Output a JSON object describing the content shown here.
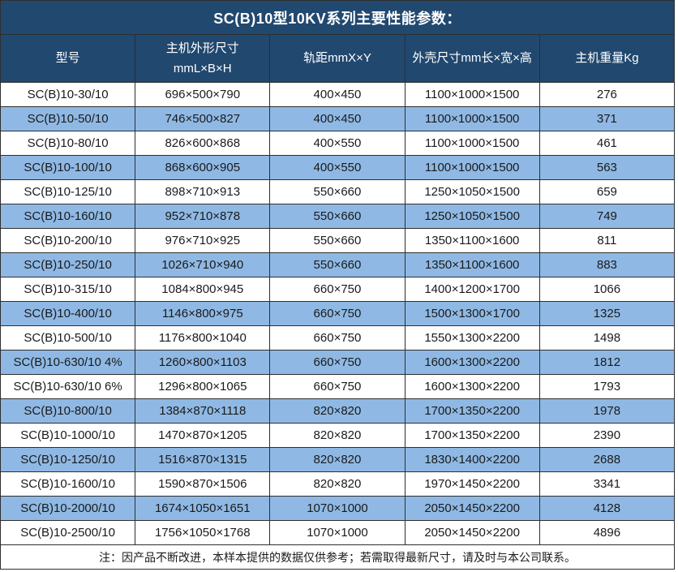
{
  "title": "SC(B)10型10KV系列主要性能参数：",
  "colors": {
    "header_bg": "#21486F",
    "header_text": "#FFFFFF",
    "alt_row_bg": "#8FB9E4",
    "border": "#2E2E2E",
    "body_text": "#1A1A1A"
  },
  "table": {
    "columns": [
      "型号",
      "主机外形尺寸\nmmL×B×H",
      "轨距mmX×Y",
      "外壳尺寸mm长×宽×高",
      "主机重量Kg"
    ],
    "rows": [
      [
        "SC(B)10-30/10",
        "696×500×790",
        "400×450",
        "1100×1000×1500",
        "276"
      ],
      [
        "SC(B)10-50/10",
        "746×500×827",
        "400×450",
        "1100×1000×1500",
        "371"
      ],
      [
        "SC(B)10-80/10",
        "826×600×868",
        "400×550",
        "1100×1000×1500",
        "461"
      ],
      [
        "SC(B)10-100/10",
        "868×600×905",
        "400×550",
        "1100×1000×1500",
        "563"
      ],
      [
        "SC(B)10-125/10",
        "898×710×913",
        "550×660",
        "1250×1050×1500",
        "659"
      ],
      [
        "SC(B)10-160/10",
        "952×710×878",
        "550×660",
        "1250×1050×1500",
        "749"
      ],
      [
        "SC(B)10-200/10",
        "976×710×925",
        "550×660",
        "1350×1100×1600",
        "811"
      ],
      [
        "SC(B)10-250/10",
        "1026×710×940",
        "550×660",
        "1350×1100×1600",
        "883"
      ],
      [
        "SC(B)10-315/10",
        "1084×800×945",
        "660×750",
        "1400×1200×1700",
        "1066"
      ],
      [
        "SC(B)10-400/10",
        "1146×800×975",
        "660×750",
        "1500×1300×1700",
        "1325"
      ],
      [
        "SC(B)10-500/10",
        "1176×800×1040",
        "660×750",
        "1550×1300×2200",
        "1498"
      ],
      [
        "SC(B)10-630/10 4%",
        "1260×800×1103",
        "660×750",
        "1600×1300×2200",
        "1812"
      ],
      [
        "SC(B)10-630/10 6%",
        "1296×800×1065",
        "660×750",
        "1600×1300×2200",
        "1793"
      ],
      [
        "SC(B)10-800/10",
        "1384×870×1118",
        "820×820",
        "1700×1350×2200",
        "1978"
      ],
      [
        "SC(B)10-1000/10",
        "1470×870×1205",
        "820×820",
        "1700×1350×2200",
        "2390"
      ],
      [
        "SC(B)10-1250/10",
        "1516×870×1315",
        "820×820",
        "1830×1400×2200",
        "2688"
      ],
      [
        "SC(B)10-1600/10",
        "1590×870×1506",
        "820×820",
        "1970×1450×2200",
        "3341"
      ],
      [
        "SC(B)10-2000/10",
        "1674×1050×1651",
        "1070×1000",
        "2050×1450×2200",
        "4128"
      ],
      [
        "SC(B)10-2500/10",
        "1756×1050×1768",
        "1070×1000",
        "2050×1450×2200",
        "4896"
      ]
    ]
  },
  "footer": {
    "note": "注：因产品不断改进，本样本提供的数据仅供参考；若需取得最新尺寸，请及时与本公司联系。"
  }
}
